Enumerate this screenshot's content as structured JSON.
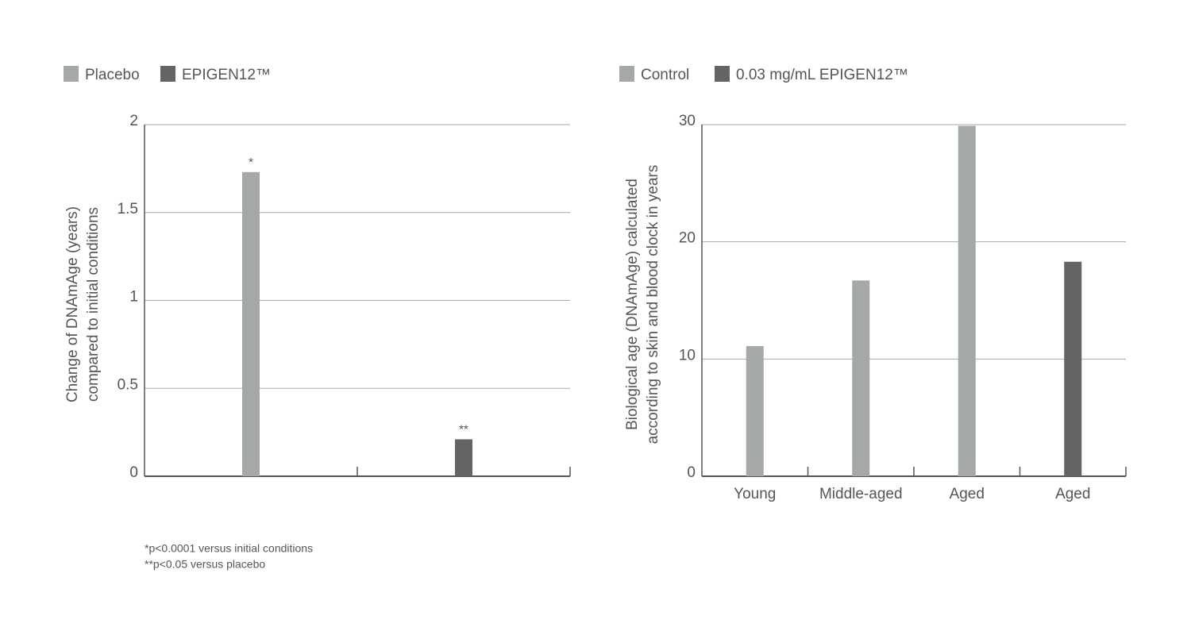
{
  "chart_data": [
    {
      "type": "bar",
      "ylabel": [
        "Change of DNAmAge (years)",
        "compared to initial conditions"
      ],
      "categories": [
        null,
        null
      ],
      "series": [
        {
          "name": "Placebo",
          "color": "#a5a8a8",
          "values": [
            1.73,
            null
          ],
          "significance": [
            "*",
            null
          ]
        },
        {
          "name": "EPIGEN12™",
          "color": "#646464",
          "values": [
            null,
            0.21
          ],
          "significance": [
            null,
            "**"
          ]
        }
      ],
      "ylim": [
        0,
        2
      ],
      "yticks": [
        0,
        0.5,
        1,
        1.5,
        2
      ],
      "grid": true,
      "footnotes": [
        "*p<0.0001 versus initial conditions",
        "**p<0.05 versus placebo"
      ]
    },
    {
      "type": "bar",
      "ylabel": [
        "Biological age (DNAmAge) calculated",
        "according to skin and blood clock in years"
      ],
      "categories": [
        "Young",
        "Middle-aged",
        "Aged",
        "Aged"
      ],
      "series": [
        {
          "name": "Control",
          "color": "#a5a8a8",
          "values": [
            11.1,
            16.7,
            29.9,
            null
          ]
        },
        {
          "name": "0.03 mg/mL EPIGEN12™",
          "color": "#646464",
          "values": [
            null,
            null,
            null,
            18.3
          ]
        }
      ],
      "ylim": [
        0,
        30
      ],
      "yticks": [
        0,
        10,
        20,
        30
      ],
      "grid": true
    }
  ]
}
